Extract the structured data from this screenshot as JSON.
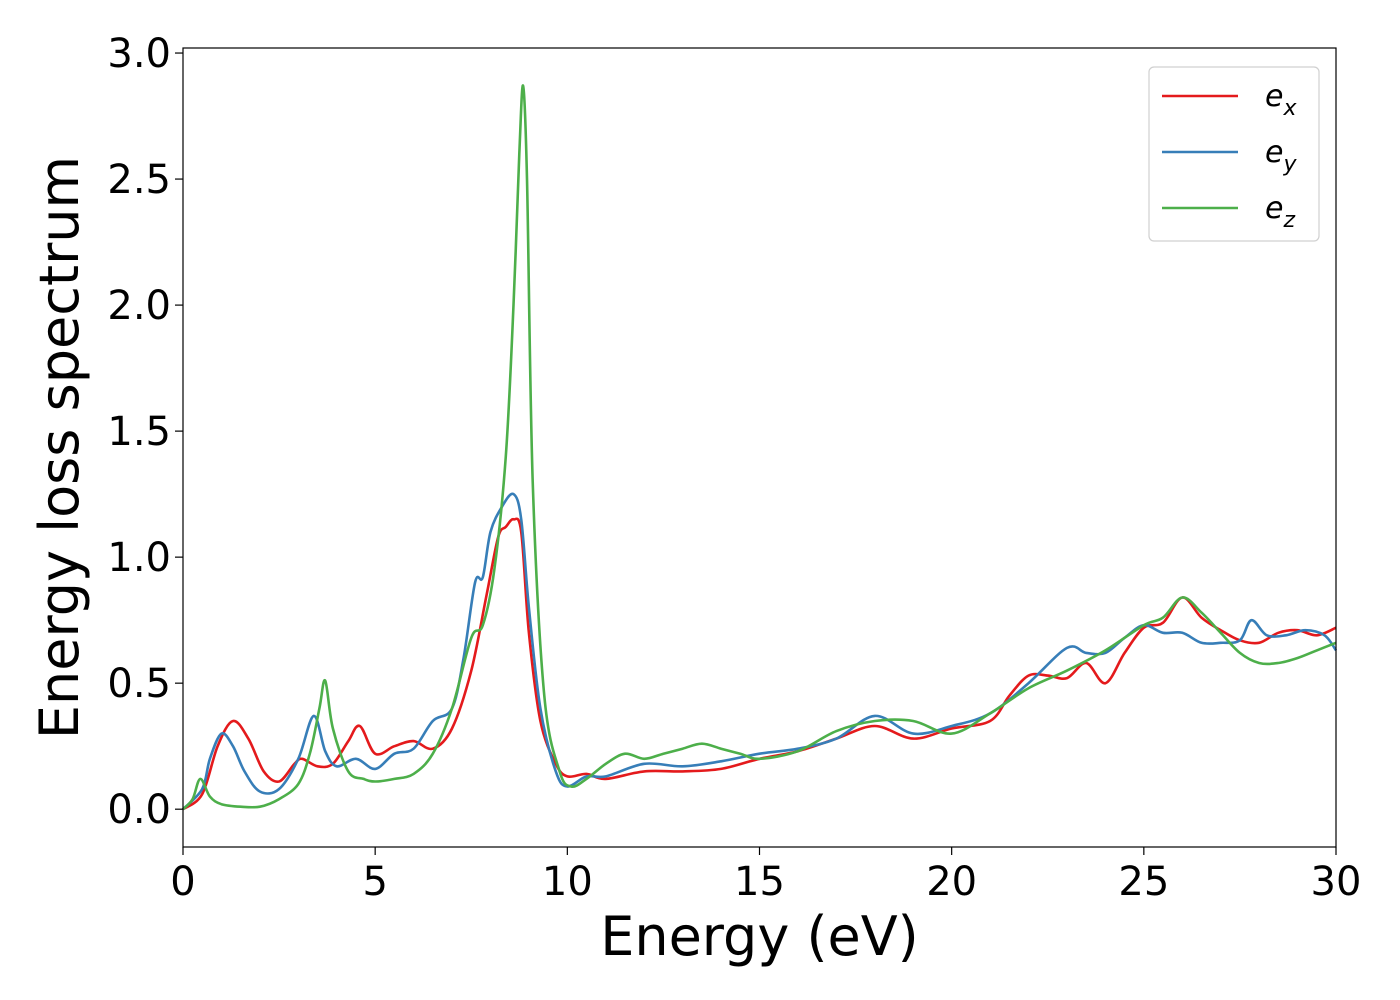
{
  "chart_data": {
    "type": "line",
    "title": "",
    "xlabel": "Energy (eV)",
    "ylabel": "Energy loss spectrum",
    "xlim": [
      0,
      30
    ],
    "ylim": [
      -0.15,
      3.02
    ],
    "xticks": [
      "0",
      "5",
      "10",
      "15",
      "20",
      "25",
      "30"
    ],
    "yticks": [
      "0.0",
      "0.5",
      "1.0",
      "1.5",
      "2.0",
      "2.5",
      "3.0"
    ],
    "grid": false,
    "legend_position": "top-right",
    "series": [
      {
        "name": "e_x",
        "label_base": "e",
        "label_sub": "x",
        "color": "#e41a1c",
        "x": [
          0,
          0.5,
          0.9,
          1.3,
          1.7,
          2.1,
          2.5,
          2.9,
          3.1,
          3.5,
          3.9,
          4.3,
          4.6,
          5.0,
          5.5,
          6.0,
          6.5,
          7.0,
          7.5,
          7.9,
          8.2,
          8.4,
          8.6,
          8.8,
          9.0,
          9.3,
          9.7,
          10.0,
          10.5,
          11.0,
          12.0,
          13.0,
          14.0,
          15.0,
          16.0,
          17.0,
          18.0,
          19.0,
          20.0,
          21.0,
          21.5,
          22.0,
          22.5,
          23.0,
          23.5,
          24.0,
          24.5,
          25.0,
          25.5,
          26.0,
          26.5,
          27.0,
          27.5,
          28.0,
          28.5,
          29.0,
          29.5,
          30.0
        ],
        "y": [
          0.0,
          0.06,
          0.25,
          0.35,
          0.28,
          0.15,
          0.11,
          0.18,
          0.2,
          0.17,
          0.18,
          0.27,
          0.33,
          0.22,
          0.25,
          0.27,
          0.24,
          0.32,
          0.55,
          0.85,
          1.08,
          1.12,
          1.15,
          1.1,
          0.7,
          0.35,
          0.18,
          0.13,
          0.14,
          0.12,
          0.15,
          0.15,
          0.16,
          0.2,
          0.23,
          0.28,
          0.33,
          0.28,
          0.32,
          0.35,
          0.45,
          0.53,
          0.53,
          0.52,
          0.58,
          0.5,
          0.62,
          0.72,
          0.74,
          0.84,
          0.76,
          0.71,
          0.67,
          0.66,
          0.7,
          0.71,
          0.69,
          0.72
        ]
      },
      {
        "name": "e_y",
        "label_base": "e",
        "label_sub": "y",
        "color": "#377eb8",
        "x": [
          0,
          0.5,
          0.7,
          1.0,
          1.3,
          1.6,
          2.0,
          2.5,
          3.0,
          3.4,
          3.7,
          4.0,
          4.5,
          5.0,
          5.5,
          6.0,
          6.5,
          7.0,
          7.3,
          7.6,
          7.8,
          8.0,
          8.3,
          8.6,
          8.8,
          9.0,
          9.3,
          9.7,
          10.0,
          10.5,
          11.0,
          12.0,
          13.0,
          14.0,
          15.0,
          16.0,
          17.0,
          18.0,
          19.0,
          20.0,
          21.0,
          22.0,
          23.0,
          23.5,
          24.0,
          24.5,
          25.0,
          25.5,
          26.0,
          26.5,
          27.0,
          27.5,
          27.8,
          28.2,
          28.7,
          29.2,
          29.7,
          30.0
        ],
        "y": [
          0.0,
          0.08,
          0.2,
          0.3,
          0.25,
          0.15,
          0.07,
          0.08,
          0.2,
          0.37,
          0.23,
          0.17,
          0.2,
          0.16,
          0.22,
          0.24,
          0.35,
          0.4,
          0.6,
          0.9,
          0.92,
          1.1,
          1.2,
          1.25,
          1.15,
          0.8,
          0.4,
          0.15,
          0.09,
          0.13,
          0.13,
          0.18,
          0.17,
          0.19,
          0.22,
          0.24,
          0.28,
          0.37,
          0.3,
          0.33,
          0.38,
          0.5,
          0.64,
          0.62,
          0.62,
          0.68,
          0.73,
          0.7,
          0.7,
          0.66,
          0.66,
          0.67,
          0.75,
          0.69,
          0.69,
          0.71,
          0.69,
          0.63
        ]
      },
      {
        "name": "e_z",
        "label_base": "e",
        "label_sub": "z",
        "color": "#4daf4a",
        "x": [
          0,
          0.25,
          0.45,
          0.7,
          1.0,
          1.5,
          2.0,
          2.5,
          3.0,
          3.3,
          3.55,
          3.7,
          3.9,
          4.3,
          4.7,
          5.0,
          5.5,
          6.0,
          6.5,
          7.0,
          7.5,
          7.8,
          8.1,
          8.4,
          8.6,
          8.75,
          8.85,
          8.95,
          9.1,
          9.4,
          9.8,
          10.1,
          10.5,
          11.0,
          11.5,
          12.0,
          12.5,
          13.0,
          13.5,
          14.0,
          14.5,
          15.0,
          16.0,
          17.0,
          18.0,
          19.0,
          20.0,
          21.0,
          22.0,
          23.0,
          24.0,
          25.0,
          25.5,
          26.0,
          26.5,
          27.0,
          27.5,
          28.0,
          28.5,
          29.0,
          29.5,
          30.0
        ],
        "y": [
          0.0,
          0.04,
          0.12,
          0.05,
          0.02,
          0.01,
          0.01,
          0.04,
          0.1,
          0.22,
          0.4,
          0.51,
          0.32,
          0.15,
          0.12,
          0.11,
          0.12,
          0.14,
          0.22,
          0.4,
          0.68,
          0.73,
          0.95,
          1.4,
          2.0,
          2.6,
          2.87,
          2.5,
          1.3,
          0.45,
          0.15,
          0.09,
          0.12,
          0.18,
          0.22,
          0.2,
          0.22,
          0.24,
          0.26,
          0.24,
          0.22,
          0.2,
          0.23,
          0.31,
          0.35,
          0.35,
          0.3,
          0.38,
          0.48,
          0.55,
          0.63,
          0.73,
          0.76,
          0.84,
          0.78,
          0.7,
          0.62,
          0.58,
          0.58,
          0.6,
          0.63,
          0.66
        ]
      }
    ]
  }
}
